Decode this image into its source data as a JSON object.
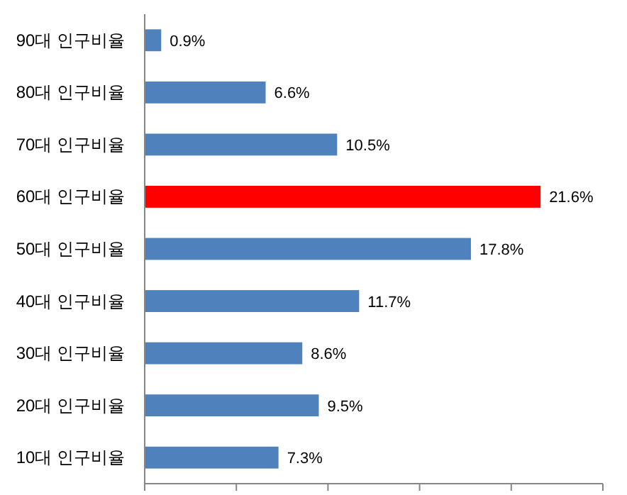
{
  "chart_data": {
    "type": "bar",
    "orientation": "horizontal",
    "categories": [
      "90대 인구비율",
      "80대 인구비율",
      "70대 인구비율",
      "60대 인구비율",
      "50대 인구비율",
      "40대 인구비율",
      "30대 인구비율",
      "20대 인구비율",
      "10대 인구비율"
    ],
    "values": [
      0.9,
      6.6,
      10.5,
      21.6,
      17.8,
      11.7,
      8.6,
      9.5,
      7.3
    ],
    "colors": [
      "#4f81bd",
      "#4f81bd",
      "#4f81bd",
      "#ff0000",
      "#4f81bd",
      "#4f81bd",
      "#4f81bd",
      "#4f81bd",
      "#4f81bd"
    ],
    "value_labels": [
      "0.9%",
      "6.6%",
      "10.5%",
      "21.6%",
      "17.8%",
      "11.7%",
      "8.6%",
      "9.5%",
      "7.3%"
    ],
    "xlim": [
      0,
      25
    ],
    "xticks": [
      {
        "value": 0,
        "label": null
      },
      {
        "value": 5,
        "label": null
      },
      {
        "value": 10,
        "label": null
      },
      {
        "value": 15,
        "label": null
      },
      {
        "value": 20,
        "label": null
      },
      {
        "value": 25,
        "label": null
      }
    ],
    "tick_labels": "y",
    "grid": false
  }
}
